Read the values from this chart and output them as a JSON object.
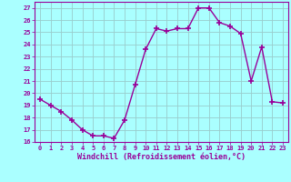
{
  "x": [
    0,
    1,
    2,
    3,
    4,
    5,
    6,
    7,
    8,
    9,
    10,
    11,
    12,
    13,
    14,
    15,
    16,
    17,
    18,
    19,
    20,
    21,
    22,
    23
  ],
  "y": [
    19.5,
    19.0,
    18.5,
    17.8,
    17.0,
    16.5,
    16.5,
    16.3,
    17.8,
    20.7,
    23.6,
    25.3,
    25.1,
    25.3,
    25.3,
    27.0,
    27.0,
    25.8,
    25.5,
    24.9,
    21.0,
    23.8,
    19.3,
    19.2
  ],
  "line_color": "#990099",
  "marker": "+",
  "marker_size": 4,
  "bg_color": "#aaffff",
  "grid_color": "#99cccc",
  "xlabel": "Windchill (Refroidissement éolien,°C)",
  "xlabel_color": "#990099",
  "tick_color": "#990099",
  "ylim": [
    16,
    27.5
  ],
  "xlim": [
    -0.5,
    23.5
  ],
  "yticks": [
    16,
    17,
    18,
    19,
    20,
    21,
    22,
    23,
    24,
    25,
    26,
    27
  ],
  "xticks": [
    0,
    1,
    2,
    3,
    4,
    5,
    6,
    7,
    8,
    9,
    10,
    11,
    12,
    13,
    14,
    15,
    16,
    17,
    18,
    19,
    20,
    21,
    22,
    23
  ],
  "xtick_labels": [
    "0",
    "1",
    "2",
    "3",
    "4",
    "5",
    "6",
    "7",
    "8",
    "9",
    "10",
    "11",
    "12",
    "13",
    "14",
    "15",
    "16",
    "17",
    "18",
    "19",
    "20",
    "21",
    "22",
    "23"
  ]
}
